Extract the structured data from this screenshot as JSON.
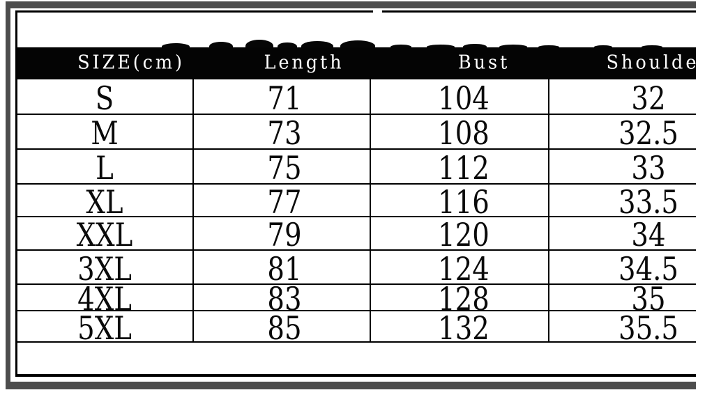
{
  "chart_data": {
    "type": "table",
    "columns": [
      "SIZE(cm)",
      "Length",
      "Bust",
      "Shoulder"
    ],
    "rows": [
      [
        "S",
        "71",
        "104",
        "32"
      ],
      [
        "M",
        "73",
        "108",
        "32.5"
      ],
      [
        "L",
        "75",
        "112",
        "33"
      ],
      [
        "XL",
        "77",
        "116",
        "33.5"
      ],
      [
        "XXL",
        "79",
        "120",
        "34"
      ],
      [
        "3XL",
        "81",
        "124",
        "34.5"
      ],
      [
        "4XL",
        "83",
        "128",
        "35"
      ],
      [
        "5XL",
        "85",
        "132",
        "35.5"
      ]
    ]
  },
  "colors": {
    "background": "#ffffff",
    "frame_gray": "#4d4d4d",
    "header_bg": "#040404",
    "header_text": "#ffffff",
    "grid_line": "#000000"
  }
}
